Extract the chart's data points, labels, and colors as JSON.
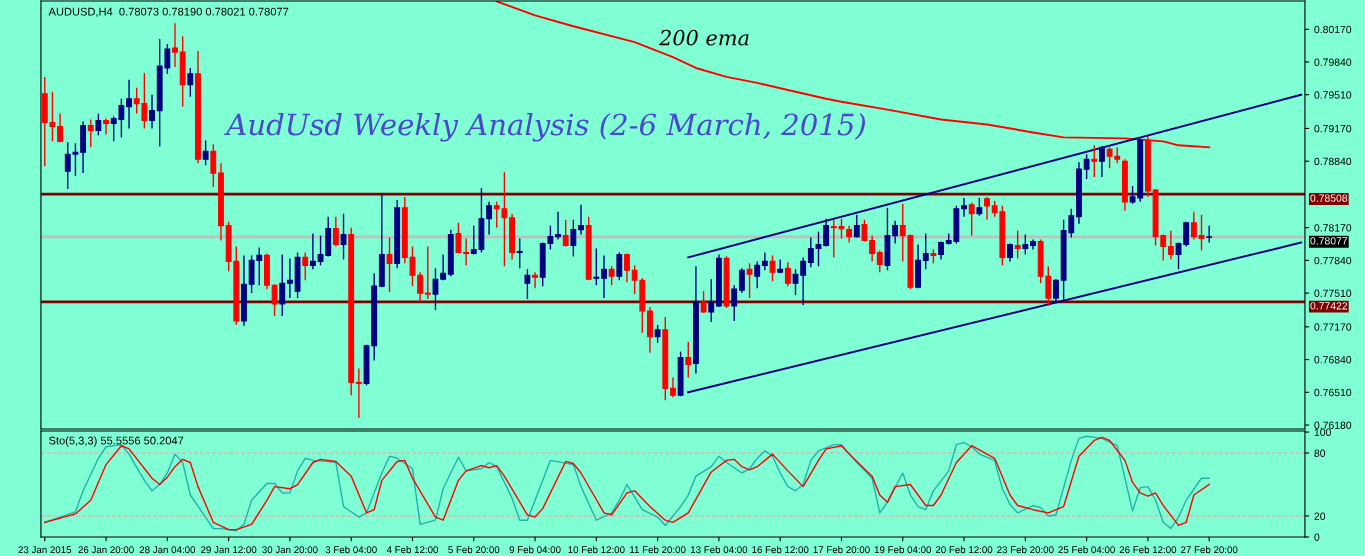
{
  "chart_data": [
    {
      "type": "candlestick",
      "subtitle": "AUDUSD,H4  0.78073 0.78190 0.78021 0.78077",
      "title": "AudUsd Weekly Analysis (2-6 March, 2015)",
      "categories": [
        null,
        null,
        null,
        null,
        null,
        null,
        null,
        null,
        null,
        null,
        null,
        null,
        null,
        null,
        null,
        null,
        null,
        null,
        null,
        null,
        null,
        null,
        null,
        null,
        null,
        null,
        null,
        null,
        null,
        null,
        null,
        null,
        null,
        null,
        null,
        null,
        null,
        null,
        null,
        null,
        null,
        null,
        null,
        null,
        null,
        null,
        null,
        null,
        null,
        null,
        null,
        null,
        null,
        null,
        null,
        null,
        null,
        null,
        null,
        null,
        null,
        null,
        null,
        null,
        null,
        null,
        null,
        null,
        null,
        null,
        null,
        null,
        null,
        null,
        null,
        null,
        null,
        null,
        null,
        null,
        null,
        null,
        null,
        null,
        null,
        null,
        null,
        null,
        null,
        null,
        null,
        null,
        null,
        null,
        null,
        null,
        null,
        null,
        null,
        null,
        null,
        null,
        null,
        null,
        null,
        null,
        null,
        null,
        null,
        null,
        null,
        null,
        null,
        null,
        null,
        null,
        null,
        null,
        null,
        null,
        null,
        null,
        null,
        null,
        null,
        null,
        null,
        null,
        null,
        null,
        null,
        null,
        null,
        null,
        null,
        null,
        null,
        null,
        null,
        null,
        null,
        null,
        null,
        null,
        null,
        null,
        null,
        null,
        null,
        null,
        null,
        null,
        null,
        null,
        null,
        null,
        null,
        null,
        null,
        null,
        null,
        null,
        null,
        null,
        null
      ],
      "ohlc": [
        [
          0.7952,
          0.7969,
          0.7879,
          0.7923
        ],
        [
          0.7923,
          0.7954,
          0.7904,
          0.7919
        ],
        [
          0.7919,
          0.7932,
          0.7903,
          0.7904
        ],
        [
          0.7874,
          0.7903,
          0.7856,
          0.7891
        ],
        [
          0.7891,
          0.7902,
          0.7869,
          0.7893
        ],
        [
          0.7893,
          0.7924,
          0.7872,
          0.792
        ],
        [
          0.792,
          0.7926,
          0.7898,
          0.7915
        ],
        [
          0.7915,
          0.7932,
          0.791,
          0.7925
        ],
        [
          0.7925,
          0.7927,
          0.7911,
          0.7922
        ],
        [
          0.7922,
          0.7929,
          0.7904,
          0.7927
        ],
        [
          0.7926,
          0.7947,
          0.7908,
          0.794
        ],
        [
          0.7939,
          0.7966,
          0.7917,
          0.7947
        ],
        [
          0.7947,
          0.7958,
          0.7932,
          0.7942
        ],
        [
          0.7942,
          0.7973,
          0.7917,
          0.7925
        ],
        [
          0.7925,
          0.7951,
          0.7917,
          0.7935
        ],
        [
          0.7935,
          0.8007,
          0.7899,
          0.798
        ],
        [
          0.7978,
          0.8002,
          0.7972,
          0.7997
        ],
        [
          0.7998,
          0.8023,
          0.7979,
          0.7994
        ],
        [
          0.7994,
          0.801,
          0.7939,
          0.7961
        ],
        [
          0.7961,
          0.7978,
          0.7949,
          0.7972
        ],
        [
          0.7972,
          0.7995,
          0.7882,
          0.7886
        ],
        [
          0.7886,
          0.7905,
          0.788,
          0.7894
        ],
        [
          0.7894,
          0.7901,
          0.7858,
          0.7872
        ],
        [
          0.7872,
          0.7882,
          0.7804,
          0.7819
        ],
        [
          0.7819,
          0.7823,
          0.7773,
          0.7783
        ],
        [
          0.7783,
          0.7798,
          0.7719,
          0.7723
        ],
        [
          0.7723,
          0.7789,
          0.7718,
          0.776
        ],
        [
          0.776,
          0.7789,
          0.7751,
          0.7784
        ],
        [
          0.7784,
          0.7797,
          0.7759,
          0.7789
        ],
        [
          0.7789,
          0.7791,
          0.7755,
          0.7759
        ],
        [
          0.7759,
          0.776,
          0.7728,
          0.774
        ],
        [
          0.774,
          0.779,
          0.7728,
          0.7761
        ],
        [
          0.7761,
          0.7786,
          0.7746,
          0.7764
        ],
        [
          0.7753,
          0.7792,
          0.7746,
          0.7787
        ],
        [
          0.7787,
          0.7792,
          0.7764,
          0.7779
        ],
        [
          0.7779,
          0.7811,
          0.7775,
          0.7783
        ],
        [
          0.7783,
          0.7809,
          0.7779,
          0.779
        ],
        [
          0.7789,
          0.7828,
          0.7788,
          0.7816
        ],
        [
          0.7816,
          0.7828,
          0.7798,
          0.78
        ],
        [
          0.78,
          0.7831,
          0.7785,
          0.781
        ],
        [
          0.781,
          0.7817,
          0.7648,
          0.7661
        ],
        [
          0.7661,
          0.7675,
          0.7625,
          0.766
        ],
        [
          0.766,
          0.7699,
          0.7658,
          0.7698
        ],
        [
          0.7698,
          0.7771,
          0.7683,
          0.7758
        ],
        [
          0.7758,
          0.7852,
          0.7757,
          0.779
        ],
        [
          0.779,
          0.7807,
          0.7752,
          0.7781
        ],
        [
          0.7781,
          0.7845,
          0.7776,
          0.7837
        ],
        [
          0.7837,
          0.7848,
          0.7781,
          0.7787
        ],
        [
          0.7787,
          0.7798,
          0.7758,
          0.7769
        ],
        [
          0.7769,
          0.7772,
          0.7742,
          0.7751
        ],
        [
          0.7751,
          0.7798,
          0.7745,
          0.775
        ],
        [
          0.775,
          0.7776,
          0.7734,
          0.7765
        ],
        [
          0.7765,
          0.779,
          0.7764,
          0.7771
        ],
        [
          0.777,
          0.7815,
          0.7768,
          0.781
        ],
        [
          0.7811,
          0.7822,
          0.7791,
          0.7792
        ],
        [
          0.7792,
          0.7806,
          0.7779,
          0.7791
        ],
        [
          0.7791,
          0.7819,
          0.779,
          0.7795
        ],
        [
          0.7795,
          0.7857,
          0.7792,
          0.7826
        ],
        [
          0.7826,
          0.7843,
          0.781,
          0.7839
        ],
        [
          0.7839,
          0.7843,
          0.7817,
          0.7836
        ],
        [
          0.7836,
          0.7873,
          0.7778,
          0.7827
        ],
        [
          0.7827,
          0.7831,
          0.7785,
          0.7792
        ],
        [
          0.7792,
          0.7806,
          0.7776,
          0.7793
        ],
        [
          0.7761,
          0.7775,
          0.7745,
          0.7769
        ],
        [
          0.7769,
          0.7772,
          0.7756,
          0.7767
        ],
        [
          0.7767,
          0.7802,
          0.7758,
          0.7801
        ],
        [
          0.7801,
          0.7819,
          0.7795,
          0.7808
        ],
        [
          0.7808,
          0.7833,
          0.7805,
          0.781
        ],
        [
          0.7809,
          0.7825,
          0.7798,
          0.7799
        ],
        [
          0.7799,
          0.7825,
          0.7788,
          0.7815
        ],
        [
          0.7815,
          0.784,
          0.781,
          0.7819
        ],
        [
          0.7819,
          0.7828,
          0.7764,
          0.7765
        ],
        [
          0.7766,
          0.7796,
          0.7759,
          0.7767
        ],
        [
          0.7766,
          0.7789,
          0.7746,
          0.7775
        ],
        [
          0.7775,
          0.7778,
          0.7759,
          0.7768
        ],
        [
          0.7768,
          0.7792,
          0.7764,
          0.779
        ],
        [
          0.779,
          0.7791,
          0.7762,
          0.7774
        ],
        [
          0.7774,
          0.7779,
          0.775,
          0.7764
        ],
        [
          0.7764,
          0.7766,
          0.7711,
          0.7733
        ],
        [
          0.7733,
          0.7737,
          0.7691,
          0.7707
        ],
        [
          0.7707,
          0.7719,
          0.7701,
          0.7714
        ],
        [
          0.7714,
          0.7727,
          0.7643,
          0.7655
        ],
        [
          0.7655,
          0.7666,
          0.7646,
          0.7648
        ],
        [
          0.7648,
          0.7692,
          0.7647,
          0.7686
        ],
        [
          0.7686,
          0.7702,
          0.7666,
          0.7679
        ],
        [
          0.768,
          0.7778,
          0.767,
          0.7742
        ],
        [
          0.7742,
          0.7753,
          0.7731,
          0.7732
        ],
        [
          0.7732,
          0.7765,
          0.7722,
          0.7742
        ],
        [
          0.7738,
          0.779,
          0.7737,
          0.7786
        ],
        [
          0.7786,
          0.7788,
          0.7736,
          0.7738
        ],
        [
          0.7738,
          0.7759,
          0.7723,
          0.7755
        ],
        [
          0.7754,
          0.7776,
          0.7751,
          0.7774
        ],
        [
          0.7775,
          0.7781,
          0.7746,
          0.777
        ],
        [
          0.7768,
          0.7783,
          0.7756,
          0.7779
        ],
        [
          0.7779,
          0.7792,
          0.7774,
          0.7783
        ],
        [
          0.7783,
          0.7789,
          0.7763,
          0.7772
        ],
        [
          0.7772,
          0.7785,
          0.7771,
          0.7775
        ],
        [
          0.7776,
          0.7782,
          0.7758,
          0.7761
        ],
        [
          0.7761,
          0.7775,
          0.7749,
          0.777
        ],
        [
          0.7769,
          0.7787,
          0.7739,
          0.7783
        ],
        [
          0.7782,
          0.7807,
          0.7777,
          0.7796
        ],
        [
          0.7796,
          0.7813,
          0.7778,
          0.78
        ],
        [
          0.7799,
          0.7826,
          0.7798,
          0.7819
        ],
        [
          0.7818,
          0.7825,
          0.7787,
          0.7817
        ],
        [
          0.7818,
          0.7826,
          0.7806,
          0.7816
        ],
        [
          0.7815,
          0.7819,
          0.7802,
          0.7808
        ],
        [
          0.7808,
          0.783,
          0.7807,
          0.7819
        ],
        [
          0.782,
          0.7825,
          0.7803,
          0.7804
        ],
        [
          0.7804,
          0.7809,
          0.7783,
          0.7791
        ],
        [
          0.7792,
          0.7794,
          0.7772,
          0.778
        ],
        [
          0.7779,
          0.7837,
          0.7774,
          0.7809
        ],
        [
          0.7809,
          0.7824,
          0.7801,
          0.7819
        ],
        [
          0.7819,
          0.7841,
          0.7783,
          0.7809
        ],
        [
          0.7809,
          0.781,
          0.7755,
          0.7757
        ],
        [
          0.7757,
          0.78,
          0.7756,
          0.7784
        ],
        [
          0.7784,
          0.7811,
          0.7775,
          0.7791
        ],
        [
          0.7791,
          0.7795,
          0.7781,
          0.7789
        ],
        [
          0.779,
          0.7803,
          0.7785,
          0.7802
        ],
        [
          0.7801,
          0.7811,
          0.78,
          0.7804
        ],
        [
          0.7803,
          0.7839,
          0.7801,
          0.7836
        ],
        [
          0.7836,
          0.7847,
          0.7828,
          0.7839
        ],
        [
          0.784,
          0.7842,
          0.7809,
          0.7831
        ],
        [
          0.7831,
          0.7847,
          0.7829,
          0.7837
        ],
        [
          0.7846,
          0.7848,
          0.7825,
          0.7839
        ],
        [
          0.7839,
          0.7844,
          0.7828,
          0.7832
        ],
        [
          0.7833,
          0.7839,
          0.7779,
          0.7787
        ],
        [
          0.7787,
          0.7801,
          0.7783,
          0.78
        ],
        [
          0.7799,
          0.7814,
          0.7786,
          0.7796
        ],
        [
          0.7796,
          0.781,
          0.779,
          0.78
        ],
        [
          0.7799,
          0.7805,
          0.7795,
          0.7803
        ],
        [
          0.7803,
          0.7805,
          0.7761,
          0.7768
        ],
        [
          0.7768,
          0.7778,
          0.7738,
          0.7746
        ],
        [
          0.7746,
          0.7765,
          0.7741,
          0.7764
        ],
        [
          0.7764,
          0.7825,
          0.7743,
          0.7814
        ],
        [
          0.7812,
          0.7836,
          0.7807,
          0.7829
        ],
        [
          0.7828,
          0.7883,
          0.7821,
          0.7876
        ],
        [
          0.7876,
          0.7891,
          0.7866,
          0.7886
        ],
        [
          0.7886,
          0.79,
          0.7868,
          0.7884
        ],
        [
          0.7884,
          0.7899,
          0.7868,
          0.7898
        ],
        [
          0.7896,
          0.7898,
          0.7877,
          0.7889
        ],
        [
          0.7889,
          0.7898,
          0.7882,
          0.7886
        ],
        [
          0.7884,
          0.7886,
          0.7834,
          0.7843
        ],
        [
          0.7843,
          0.7859,
          0.7841,
          0.7848
        ],
        [
          0.7847,
          0.7907,
          0.7843,
          0.7905
        ],
        [
          0.7905,
          0.791,
          0.7848,
          0.7854
        ],
        [
          0.7855,
          0.7856,
          0.7799,
          0.7808
        ],
        [
          0.7809,
          0.781,
          0.7784,
          0.7798
        ],
        [
          0.7798,
          0.7814,
          0.7785,
          0.779
        ],
        [
          0.779,
          0.7802,
          0.7775,
          0.7801
        ],
        [
          0.78,
          0.7823,
          0.7798,
          0.7822
        ],
        [
          0.7822,
          0.7833,
          0.7805,
          0.7808
        ],
        [
          0.7809,
          0.783,
          0.7794,
          0.7806
        ],
        [
          0.78073,
          0.7819,
          0.78021,
          0.78077
        ],
        null,
        null,
        null,
        null,
        null,
        null,
        null,
        null,
        null,
        null,
        null,
        null
      ],
      "colors": [
        "#ff0000",
        "#ff0000",
        "#ff0000",
        "#000080",
        "#000080",
        "#000080",
        "#ff0000",
        "#000080",
        "#ff0000",
        "#000080",
        "#000080",
        "#000080",
        "#ff0000",
        "#ff0000",
        "#000080",
        "#000080",
        "#000080",
        "#ff0000",
        "#ff0000",
        "#000080",
        "#ff0000",
        "#000080",
        "#ff0000",
        "#ff0000",
        "#ff0000",
        "#ff0000",
        "#000080",
        "#000080",
        "#000080",
        "#ff0000",
        "#ff0000",
        "#000080",
        "#000080",
        "#000080",
        "#ff0000",
        "#000080",
        "#000080",
        "#000080",
        "#ff0000",
        "#000080",
        "#ff0000",
        "#ff0000",
        "#000080",
        "#000080",
        "#000080",
        "#ff0000",
        "#000080",
        "#ff0000",
        "#ff0000",
        "#ff0000",
        "#ff0000",
        "#000080",
        "#000080",
        "#000080",
        "#ff0000",
        "#ff0000",
        "#000080",
        "#000080",
        "#000080",
        "#ff0000",
        "#ff0000",
        "#ff0000",
        "#000080",
        "#000080",
        "#ff0000",
        "#000080",
        "#000080",
        "#000080",
        "#ff0000",
        "#000080",
        "#000080",
        "#ff0000",
        "#000080",
        "#000080",
        "#ff0000",
        "#000080",
        "#ff0000",
        "#ff0000",
        "#ff0000",
        "#ff0000",
        "#000080",
        "#ff0000",
        "#ff0000",
        "#000080",
        "#ff0000",
        "#000080",
        "#ff0000",
        "#000080",
        "#000080",
        "#ff0000",
        "#000080",
        "#000080",
        "#ff0000",
        "#000080",
        "#000080",
        "#ff0000",
        "#000080",
        "#ff0000",
        "#000080",
        "#000080",
        "#000080",
        "#000080",
        "#000080",
        "#ff0000",
        "#ff0000",
        "#ff0000",
        "#000080",
        "#ff0000",
        "#ff0000",
        "#ff0000",
        "#000080",
        "#000080",
        "#ff0000",
        "#ff0000",
        "#000080",
        "#000080",
        "#ff0000",
        "#000080",
        "#000080",
        "#000080",
        "#000080",
        "#ff0000",
        "#000080",
        "#ff0000",
        "#ff0000",
        "#ff0000",
        "#000080",
        "#ff0000",
        "#000080",
        "#000080",
        "#ff0000",
        "#ff0000",
        "#000080",
        "#000080",
        "#000080",
        "#000080",
        "#000080",
        "#ff0000",
        "#000080",
        "#ff0000",
        "#ff0000",
        "#ff0000",
        "#000080",
        "#000080",
        "#ff0000",
        "#ff0000",
        "#ff0000",
        "#ff0000",
        "#000080",
        "#000080",
        "#ff0000",
        "#ff0000",
        "#000080",
        null,
        null,
        null,
        null,
        null,
        null,
        null,
        null,
        null,
        null,
        null,
        null
      ],
      "series": [
        {
          "type": "line",
          "color": "#ff0000",
          "values": [
            null,
            null,
            null,
            null,
            null,
            null,
            null,
            null,
            null,
            null,
            null,
            null,
            null,
            null,
            null,
            null,
            null,
            null,
            null,
            null,
            null,
            null,
            null,
            null,
            null,
            null,
            null,
            null,
            null,
            null,
            null,
            null,
            null,
            null,
            null,
            null,
            null,
            null,
            null,
            null,
            null,
            null,
            null,
            null,
            null,
            null,
            null,
            null,
            null,
            null,
            null,
            null,
            null,
            null,
            null,
            null,
            null,
            null,
            null,
            0.8045,
            null,
            null,
            null,
            null,
            0.8031,
            null,
            null,
            null,
            null,
            0.802,
            null,
            null,
            null,
            null,
            null,
            null,
            null,
            0.8004,
            null,
            null,
            null,
            null,
            0.7989,
            null,
            null,
            0.7978,
            null,
            null,
            null,
            0.7969,
            null,
            null,
            null,
            0.7963,
            null,
            null,
            null,
            null,
            0.7954,
            null,
            null,
            null,
            0.7947,
            null,
            0.7944,
            null,
            null,
            null,
            null,
            null,
            0.7936,
            null,
            null,
            null,
            null,
            null,
            null,
            0.7926,
            null,
            null,
            null,
            null,
            null,
            0.7921,
            null,
            null,
            null,
            null,
            null,
            0.7913,
            null,
            null,
            null,
            0.7908,
            null,
            null,
            null,
            null,
            null,
            null,
            null,
            0.7907,
            null,
            null,
            null,
            null,
            0.7904,
            null,
            0.79,
            null,
            null,
            null,
            0.7898,
            null,
            null,
            null,
            null,
            null,
            null,
            null,
            null,
            null,
            null,
            null,
            null
          ]
        },
        {
          "type": "line",
          "color": "#000080",
          "values": [
            null,
            null,
            null,
            null,
            null,
            null,
            null,
            null,
            null,
            null,
            null,
            null,
            null,
            null,
            null,
            null,
            null,
            null,
            null,
            null,
            null,
            null,
            null,
            null,
            null,
            null,
            null,
            null,
            null,
            null,
            null,
            null,
            null,
            null,
            null,
            null,
            null,
            null,
            null,
            null,
            null,
            null,
            null,
            null,
            null,
            null,
            null,
            null,
            null,
            null,
            null,
            null,
            null,
            null,
            null,
            null,
            null,
            null,
            null,
            null,
            null,
            null,
            null,
            null,
            null,
            null,
            null,
            null,
            null,
            null,
            null,
            null,
            null,
            null,
            null,
            null,
            null,
            null,
            null,
            null,
            null,
            null,
            null,
            null,
            0.7787,
            null,
            null,
            null,
            null,
            null,
            null,
            null,
            null,
            null,
            null,
            null,
            null,
            null,
            null,
            null,
            null,
            null,
            null,
            null,
            null,
            null,
            null,
            null,
            null,
            null,
            null,
            null,
            null,
            null,
            null,
            null,
            null,
            null,
            null,
            null,
            null,
            null,
            null,
            null,
            null,
            null,
            null,
            null,
            null,
            null,
            null,
            null,
            null,
            null,
            null,
            null,
            null,
            null,
            null,
            null,
            null,
            null,
            null,
            null,
            null,
            null,
            null,
            null,
            null,
            null,
            null,
            null,
            null,
            null,
            null,
            null,
            null,
            null,
            null,
            null,
            null,
            null,
            null,
            null,
            0.7951
          ]
        },
        {
          "type": "line",
          "color": "#000080",
          "values": [
            null,
            null,
            null,
            null,
            null,
            null,
            null,
            null,
            null,
            null,
            null,
            null,
            null,
            null,
            null,
            null,
            null,
            null,
            null,
            null,
            null,
            null,
            null,
            null,
            null,
            null,
            null,
            null,
            null,
            null,
            null,
            null,
            null,
            null,
            null,
            null,
            null,
            null,
            null,
            null,
            null,
            null,
            null,
            null,
            null,
            null,
            null,
            null,
            null,
            null,
            null,
            null,
            null,
            null,
            null,
            null,
            null,
            null,
            null,
            null,
            null,
            null,
            null,
            null,
            null,
            null,
            null,
            null,
            null,
            null,
            null,
            null,
            null,
            null,
            null,
            null,
            null,
            null,
            null,
            null,
            null,
            null,
            null,
            null,
            0.7651,
            null,
            null,
            null,
            null,
            null,
            null,
            null,
            null,
            null,
            null,
            null,
            null,
            null,
            null,
            null,
            null,
            null,
            null,
            null,
            null,
            null,
            null,
            null,
            null,
            null,
            null,
            null,
            null,
            null,
            null,
            null,
            null,
            null,
            null,
            null,
            null,
            null,
            null,
            null,
            null,
            null,
            null,
            null,
            null,
            null,
            null,
            null,
            null,
            null,
            null,
            null,
            null,
            null,
            null,
            null,
            null,
            null,
            null,
            null,
            null,
            null,
            null,
            null,
            null,
            null,
            null,
            null,
            null,
            null,
            null,
            null,
            null,
            null,
            null,
            null,
            null,
            null,
            null,
            null,
            0.7802
          ]
        }
      ],
      "ylim": [
        0.7614,
        0.80455
      ],
      "yticks": [
        {
          "value": 0.8017,
          "label": "0.80170"
        },
        {
          "value": 0.7984,
          "label": "0.79840"
        },
        {
          "value": 0.7951,
          "label": "0.79510"
        },
        {
          "value": 0.7917,
          "label": "0.79170"
        },
        {
          "value": 0.7884,
          "label": "0.78840"
        },
        {
          "value": 0.7817,
          "label": "0.78170"
        },
        {
          "value": 0.7784,
          "label": "0.77840"
        },
        {
          "value": 0.7751,
          "label": "0.77510"
        },
        {
          "value": 0.7717,
          "label": "0.77170"
        },
        {
          "value": 0.7684,
          "label": "0.76840"
        },
        {
          "value": 0.7651,
          "label": "0.76510"
        },
        {
          "value": 0.7618,
          "label": "0.76180"
        }
      ],
      "ref_lines": [
        {
          "axis": "y",
          "value": 0.78508,
          "label": "0.78508",
          "color": "#800000"
        },
        {
          "axis": "y",
          "value": 0.77422,
          "label": "0.77422",
          "color": "#800000"
        },
        {
          "axis": "y",
          "value": 0.78077,
          "label": "0.78077",
          "color": "#c0c0c0"
        }
      ],
      "annotations": [
        "200 ema"
      ]
    },
    {
      "type": "line",
      "title": "Sto(5,3,3) 55.5556 50.2047",
      "categories": [
        "23 Jan 2015",
        null,
        null,
        null,
        null,
        null,
        null,
        null,
        "26 Jan 20:00",
        null,
        null,
        null,
        null,
        null,
        null,
        null,
        "28 Jan 04:00",
        null,
        null,
        null,
        null,
        null,
        null,
        null,
        "29 Jan 12:00",
        null,
        null,
        null,
        null,
        null,
        null,
        null,
        "30 Jan 20:00",
        null,
        null,
        null,
        null,
        null,
        null,
        null,
        "3 Feb 04:00",
        null,
        null,
        null,
        null,
        null,
        null,
        null,
        "4 Feb 12:00",
        null,
        null,
        null,
        null,
        null,
        null,
        null,
        "5 Feb 20:00",
        null,
        null,
        null,
        null,
        null,
        null,
        null,
        "9 Feb 04:00",
        null,
        null,
        null,
        null,
        null,
        null,
        null,
        "10 Feb 12:00",
        null,
        null,
        null,
        null,
        null,
        null,
        null,
        "11 Feb 20:00",
        null,
        null,
        null,
        null,
        null,
        null,
        null,
        "13 Feb 04:00",
        null,
        null,
        null,
        null,
        null,
        null,
        null,
        "16 Feb 12:00",
        null,
        null,
        null,
        null,
        null,
        null,
        null,
        "17 Feb 20:00",
        null,
        null,
        null,
        null,
        null,
        null,
        null,
        "19 Feb 04:00",
        null,
        null,
        null,
        null,
        null,
        null,
        null,
        "20 Feb 12:00",
        null,
        null,
        null,
        null,
        null,
        null,
        null,
        "23 Feb 20:00",
        null,
        null,
        null,
        null,
        null,
        null,
        null,
        "25 Feb 04:00",
        null,
        null,
        null,
        null,
        null,
        null,
        null,
        "26 Feb 12:00",
        null,
        null,
        null,
        null,
        null,
        null,
        null,
        "27 Feb 20:00",
        null,
        null,
        null,
        null,
        null,
        null,
        null,
        null,
        null,
        null,
        null,
        null
      ],
      "series": [
        {
          "color": "#20b2aa",
          "values": [
            14,
            null,
            19,
            null,
            24,
            44,
            null,
            75,
            86,
            null,
            88,
            79,
            null,
            54,
            44,
            50,
            61,
            79,
            71,
            40,
            null,
            null,
            8,
            8,
            null,
            6,
            12,
            35,
            null,
            51,
            51,
            42,
            42,
            63,
            75,
            73,
            null,
            72,
            71,
            29,
            null,
            19,
            23,
            null,
            61,
            77,
            75,
            null,
            65,
            12,
            null,
            16,
            46,
            null,
            76,
            63,
            null,
            65,
            71,
            67,
            null,
            37,
            16,
            16,
            null,
            null,
            73,
            null,
            null,
            69,
            48,
            null,
            16,
            null,
            23,
            35,
            50,
            null,
            26,
            null,
            19,
            11,
            null,
            29,
            40,
            58,
            null,
            67,
            77,
            71,
            null,
            61,
            65,
            75,
            82,
            77,
            61,
            48,
            44,
            50,
            73,
            82,
            null,
            88,
            88,
            null,
            71,
            null,
            56,
            23,
            33,
            null,
            61,
            40,
            29,
            26,
            44,
            null,
            63,
            88,
            90,
            86,
            79,
            null,
            73,
            46,
            31,
            23,
            null,
            30,
            28,
            20,
            21,
            null,
            73,
            94,
            96,
            null,
            94,
            null,
            87,
            null,
            25,
            47,
            48,
            35,
            14,
            8,
            19,
            35,
            null,
            56,
            56,
            null,
            null,
            null,
            null,
            null,
            null,
            null,
            null,
            null,
            null,
            null,
            null
          ]
        },
        {
          "color": "#ff0000",
          "values": [
            14,
            null,
            null,
            null,
            22,
            null,
            35,
            null,
            69,
            null,
            87,
            84,
            null,
            null,
            56,
            50,
            57,
            67,
            74,
            71,
            48,
            null,
            14,
            null,
            7,
            7,
            null,
            12,
            null,
            35,
            48,
            null,
            46,
            50,
            null,
            71,
            74,
            null,
            72,
            null,
            58,
            null,
            23,
            26,
            54,
            null,
            72,
            73,
            56,
            null,
            null,
            19,
            16,
            null,
            54,
            63,
            null,
            68,
            66,
            68,
            58,
            null,
            null,
            21,
            19,
            27,
            null,
            null,
            72,
            70,
            61,
            null,
            null,
            23,
            21,
            null,
            42,
            44,
            null,
            29,
            null,
            16,
            14,
            null,
            23,
            null,
            null,
            62,
            null,
            73,
            74,
            67,
            64,
            67,
            null,
            79,
            null,
            63,
            null,
            48,
            null,
            73,
            84,
            null,
            87,
            79,
            null,
            null,
            58,
            40,
            33,
            48,
            null,
            50,
            null,
            30,
            30,
            40,
            null,
            71,
            null,
            87,
            null,
            79,
            75,
            null,
            40,
            30,
            null,
            26,
            null,
            23,
            null,
            29,
            null,
            77,
            null,
            92,
            95,
            92,
            null,
            73,
            52,
            42,
            39,
            42,
            30,
            null,
            11,
            14,
            40,
            null,
            50,
            null,
            null,
            null,
            null,
            null,
            null,
            null,
            null,
            null,
            null,
            null,
            null
          ]
        }
      ],
      "ylim": [
        0,
        101
      ],
      "yticks": [
        0,
        20,
        80,
        100
      ],
      "ref_lines": [
        {
          "axis": "y",
          "value": 20,
          "color": "#ff9999",
          "line_style": "dashed"
        },
        {
          "axis": "y",
          "value": 80,
          "color": "#ff9999",
          "line_style": "dashed"
        }
      ]
    }
  ]
}
